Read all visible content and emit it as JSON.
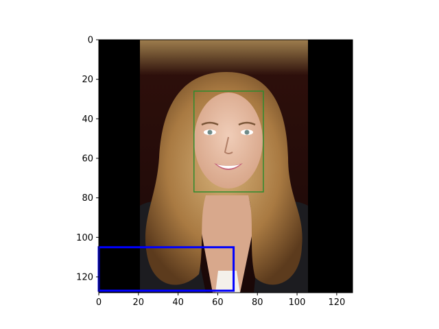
{
  "image": {
    "description_free": true,
    "width_units": 128,
    "height_units": 128
  },
  "axes": {
    "x_ticks": [
      "0",
      "20",
      "40",
      "60",
      "80",
      "100",
      "120"
    ],
    "y_ticks": [
      "0",
      "20",
      "40",
      "60",
      "80",
      "100",
      "120"
    ],
    "xlim": [
      0,
      128
    ],
    "ylim": [
      128,
      0
    ]
  },
  "overlays": {
    "face_box": {
      "color": "#2e8b2e",
      "x0": 48,
      "y0": 26,
      "x1": 83,
      "y1": 77
    },
    "region_box": {
      "color": "#0000ff",
      "x0": 0,
      "y0": 105,
      "x1": 68,
      "y1": 127
    }
  },
  "colors": {
    "black_bar": "#000000",
    "background_top": "#8c6a3c",
    "background_dark": "#2a0a0a",
    "hair": "#b0844a",
    "skin": "#e3b8a0",
    "jacket": "#1e1e22"
  }
}
